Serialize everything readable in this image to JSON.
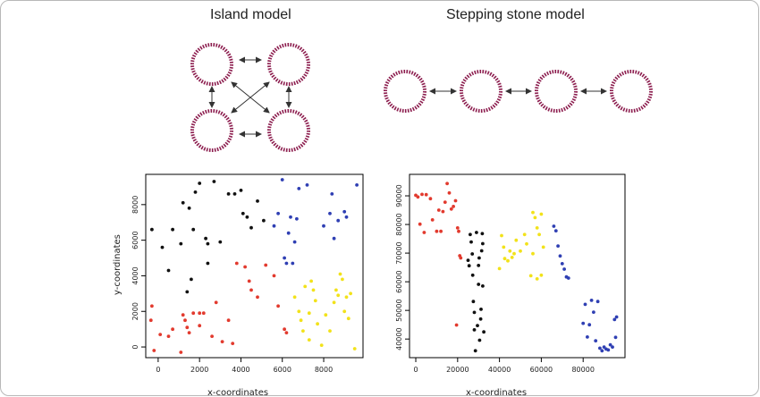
{
  "diagram": {
    "island_title": "Island model",
    "stepping_title": "Stepping stone model",
    "colors": {
      "ring": "#8c1d4e",
      "arrow": "#333333",
      "red": "#e23a2e",
      "black": "#111111",
      "blue": "#2f3fb3",
      "yellow": "#f2e21a"
    }
  },
  "chart_data": [
    {
      "type": "scatter",
      "title": "",
      "xlabel": "x-coordinates",
      "ylabel": "y-coordinates",
      "xlim": [
        -600,
        9900
      ],
      "ylim": [
        -600,
        9700
      ],
      "xticks": [
        "0",
        "2000",
        "4000",
        "6000",
        "8000"
      ],
      "xtick_values": [
        0,
        2000,
        4000,
        6000,
        8000
      ],
      "yticks": [
        "0",
        "2000",
        "4000",
        "6000",
        "8000"
      ],
      "ytick_values": [
        0,
        2000,
        4000,
        6000,
        8000
      ],
      "series": [
        {
          "color": "red",
          "points": [
            [
              -300,
              2300
            ],
            [
              -350,
              1500
            ],
            [
              -200,
              -200
            ],
            [
              100,
              700
            ],
            [
              500,
              600
            ],
            [
              700,
              1000
            ],
            [
              1100,
              -300
            ],
            [
              1200,
              1800
            ],
            [
              1300,
              1500
            ],
            [
              1400,
              1100
            ],
            [
              1500,
              800
            ],
            [
              1700,
              1900
            ],
            [
              2000,
              1900
            ],
            [
              2000,
              1200
            ],
            [
              2200,
              1900
            ],
            [
              2600,
              600
            ],
            [
              2800,
              2500
            ],
            [
              3100,
              300
            ],
            [
              3400,
              1500
            ],
            [
              3600,
              200
            ],
            [
              3800,
              4700
            ],
            [
              4200,
              4500
            ],
            [
              4400,
              3700
            ],
            [
              4500,
              3200
            ],
            [
              4800,
              2800
            ],
            [
              5200,
              4600
            ],
            [
              5600,
              4000
            ],
            [
              5800,
              2300
            ],
            [
              6100,
              1000
            ],
            [
              6200,
              800
            ]
          ]
        },
        {
          "color": "black",
          "points": [
            [
              -300,
              6600
            ],
            [
              200,
              5600
            ],
            [
              500,
              4300
            ],
            [
              700,
              6600
            ],
            [
              1100,
              5800
            ],
            [
              1200,
              8100
            ],
            [
              1400,
              3100
            ],
            [
              1500,
              7800
            ],
            [
              1600,
              3800
            ],
            [
              1700,
              6600
            ],
            [
              1800,
              8700
            ],
            [
              2000,
              9200
            ],
            [
              2300,
              6100
            ],
            [
              2400,
              4700
            ],
            [
              2400,
              5800
            ],
            [
              2700,
              9300
            ],
            [
              3000,
              5900
            ],
            [
              3400,
              8600
            ],
            [
              3700,
              8600
            ],
            [
              4000,
              8800
            ],
            [
              4100,
              7500
            ],
            [
              4300,
              7300
            ],
            [
              4500,
              6700
            ],
            [
              4800,
              8200
            ],
            [
              5100,
              7100
            ]
          ]
        },
        {
          "color": "blue",
          "points": [
            [
              5600,
              6800
            ],
            [
              5800,
              7500
            ],
            [
              6000,
              9400
            ],
            [
              6100,
              5000
            ],
            [
              6200,
              4700
            ],
            [
              6300,
              6400
            ],
            [
              6400,
              7300
            ],
            [
              6500,
              4700
            ],
            [
              6600,
              5900
            ],
            [
              6700,
              7200
            ],
            [
              6800,
              8900
            ],
            [
              7200,
              9100
            ],
            [
              8000,
              6800
            ],
            [
              8300,
              7500
            ],
            [
              8500,
              6100
            ],
            [
              8400,
              8600
            ],
            [
              8700,
              7100
            ],
            [
              9000,
              7600
            ],
            [
              9100,
              7300
            ],
            [
              9600,
              9100
            ]
          ]
        },
        {
          "color": "yellow",
          "points": [
            [
              6600,
              2800
            ],
            [
              6800,
              2000
            ],
            [
              6900,
              1500
            ],
            [
              7000,
              900
            ],
            [
              7100,
              3400
            ],
            [
              7300,
              400
            ],
            [
              7300,
              1900
            ],
            [
              7400,
              3700
            ],
            [
              7500,
              3200
            ],
            [
              7600,
              2600
            ],
            [
              7700,
              1300
            ],
            [
              7900,
              100
            ],
            [
              8100,
              1800
            ],
            [
              8300,
              900
            ],
            [
              8500,
              2500
            ],
            [
              8600,
              3200
            ],
            [
              8700,
              2900
            ],
            [
              8800,
              4100
            ],
            [
              8900,
              3800
            ],
            [
              9000,
              2000
            ],
            [
              9100,
              2800
            ],
            [
              9200,
              1600
            ],
            [
              9300,
              3000
            ],
            [
              9500,
              -100
            ]
          ]
        }
      ]
    },
    {
      "type": "scatter",
      "title": "",
      "xlabel": "x-coordinates",
      "ylabel": "",
      "xlim": [
        -3000,
        100000
      ],
      "ylim": [
        33500,
        97500
      ],
      "xticks": [
        "0",
        "20000",
        "40000",
        "60000",
        "80000"
      ],
      "xtick_values": [
        0,
        20000,
        40000,
        60000,
        80000
      ],
      "yticks": [
        "40000",
        "50000",
        "60000",
        "70000",
        "80000",
        "90000"
      ],
      "ytick_values": [
        40000,
        50000,
        60000,
        70000,
        80000,
        90000
      ],
      "series": [
        {
          "color": "red",
          "points": [
            [
              0,
              90200
            ],
            [
              1000,
              89600
            ],
            [
              2000,
              80100
            ],
            [
              3000,
              90500
            ],
            [
              4000,
              77200
            ],
            [
              5000,
              90400
            ],
            [
              7000,
              89000
            ],
            [
              8000,
              81600
            ],
            [
              10000,
              77600
            ],
            [
              11000,
              85000
            ],
            [
              12000,
              77600
            ],
            [
              13000,
              84500
            ],
            [
              14000,
              87800
            ],
            [
              15000,
              94300
            ],
            [
              16000,
              91000
            ],
            [
              17000,
              85400
            ],
            [
              18000,
              86300
            ],
            [
              19000,
              88300
            ],
            [
              19500,
              44900
            ],
            [
              20000,
              78800
            ],
            [
              20500,
              77600
            ],
            [
              21000,
              69100
            ],
            [
              21500,
              68300
            ]
          ]
        },
        {
          "color": "black",
          "points": [
            [
              25000,
              67500
            ],
            [
              25500,
              65600
            ],
            [
              26000,
              76500
            ],
            [
              26500,
              73900
            ],
            [
              27000,
              69700
            ],
            [
              27200,
              62300
            ],
            [
              27500,
              53100
            ],
            [
              28000,
              49300
            ],
            [
              28000,
              43200
            ],
            [
              28500,
              35900
            ],
            [
              29000,
              77200
            ],
            [
              29500,
              44700
            ],
            [
              30000,
              59100
            ],
            [
              30000,
              65700
            ],
            [
              30300,
              68300
            ],
            [
              30500,
              39600
            ],
            [
              31000,
              47000
            ],
            [
              31200,
              50400
            ],
            [
              31500,
              70800
            ],
            [
              31800,
              76800
            ],
            [
              32000,
              58500
            ],
            [
              32000,
              73300
            ],
            [
              32500,
              42500
            ]
          ]
        },
        {
          "color": "yellow",
          "points": [
            [
              40000,
              64600
            ],
            [
              41000,
              76100
            ],
            [
              42000,
              72100
            ],
            [
              42500,
              68100
            ],
            [
              44000,
              67300
            ],
            [
              45000,
              70700
            ],
            [
              46000,
              68500
            ],
            [
              47000,
              69800
            ],
            [
              48000,
              74500
            ],
            [
              50000,
              70700
            ],
            [
              52000,
              76500
            ],
            [
              53000,
              73200
            ],
            [
              55000,
              62100
            ],
            [
              56000,
              84200
            ],
            [
              56000,
              69800
            ],
            [
              57000,
              82400
            ],
            [
              58000,
              61000
            ],
            [
              58000,
              78800
            ],
            [
              59000,
              76500
            ],
            [
              60000,
              62300
            ],
            [
              60000,
              83600
            ],
            [
              61000,
              72100
            ]
          ]
        },
        {
          "color": "blue",
          "points": [
            [
              66000,
              79400
            ],
            [
              67000,
              77800
            ],
            [
              68000,
              72500
            ],
            [
              69000,
              69000
            ],
            [
              70000,
              66300
            ],
            [
              71000,
              64400
            ],
            [
              72000,
              61700
            ],
            [
              73000,
              61300
            ],
            [
              80000,
              45500
            ],
            [
              81000,
              52100
            ],
            [
              82000,
              40700
            ],
            [
              83000,
              45000
            ],
            [
              84000,
              53500
            ],
            [
              85000,
              49400
            ],
            [
              86000,
              39400
            ],
            [
              87000,
              53100
            ],
            [
              88000,
              36800
            ],
            [
              89000,
              35900
            ],
            [
              90000,
              37200
            ],
            [
              91000,
              36500
            ],
            [
              92000,
              36200
            ],
            [
              93000,
              38000
            ],
            [
              94000,
              37200
            ],
            [
              95000,
              46800
            ],
            [
              95500,
              40600
            ],
            [
              96000,
              47700
            ]
          ]
        }
      ]
    }
  ]
}
